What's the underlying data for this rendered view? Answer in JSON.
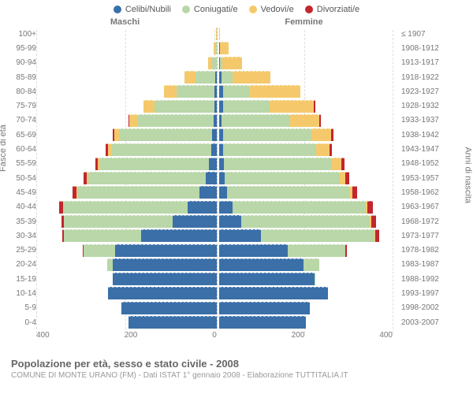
{
  "legend": {
    "items": [
      {
        "label": "Celibi/Nubili",
        "color": "#3a6fa8"
      },
      {
        "label": "Coniugati/e",
        "color": "#b9d7a8"
      },
      {
        "label": "Vedovi/e",
        "color": "#f5c96b"
      },
      {
        "label": "Divorziati/e",
        "color": "#c1272d"
      }
    ]
  },
  "headers": {
    "male": "Maschi",
    "female": "Femmine"
  },
  "axis_titles": {
    "left": "Fasce di età",
    "right": "Anni di nascita"
  },
  "x_ticks": [
    "400",
    "200",
    "0",
    "200",
    "400"
  ],
  "x_max": 400,
  "colors": {
    "celibi": "#3a6fa8",
    "coniugati": "#b9d7a8",
    "vedovi": "#f5c96b",
    "divorziati": "#c1272d"
  },
  "rows": [
    {
      "age": "100+",
      "birth": "≤ 1907",
      "m": {
        "c": 0,
        "co": 0,
        "v": 1,
        "d": 0
      },
      "f": {
        "c": 0,
        "co": 0,
        "v": 2,
        "d": 0
      }
    },
    {
      "age": "95-99",
      "birth": "1908-1912",
      "m": {
        "c": 0,
        "co": 2,
        "v": 5,
        "d": 0
      },
      "f": {
        "c": 2,
        "co": 0,
        "v": 20,
        "d": 0
      }
    },
    {
      "age": "90-94",
      "birth": "1913-1917",
      "m": {
        "c": 0,
        "co": 10,
        "v": 10,
        "d": 0
      },
      "f": {
        "c": 2,
        "co": 5,
        "v": 45,
        "d": 0
      }
    },
    {
      "age": "85-89",
      "birth": "1918-1922",
      "m": {
        "c": 3,
        "co": 45,
        "v": 25,
        "d": 0
      },
      "f": {
        "c": 5,
        "co": 25,
        "v": 85,
        "d": 0
      }
    },
    {
      "age": "80-84",
      "birth": "1923-1927",
      "m": {
        "c": 5,
        "co": 85,
        "v": 30,
        "d": 0
      },
      "f": {
        "c": 8,
        "co": 60,
        "v": 115,
        "d": 0
      }
    },
    {
      "age": "75-79",
      "birth": "1928-1932",
      "m": {
        "c": 5,
        "co": 135,
        "v": 25,
        "d": 0
      },
      "f": {
        "c": 8,
        "co": 105,
        "v": 100,
        "d": 3
      }
    },
    {
      "age": "70-74",
      "birth": "1933-1937",
      "m": {
        "c": 8,
        "co": 170,
        "v": 20,
        "d": 2
      },
      "f": {
        "c": 5,
        "co": 155,
        "v": 65,
        "d": 4
      }
    },
    {
      "age": "65-69",
      "birth": "1938-1942",
      "m": {
        "c": 10,
        "co": 210,
        "v": 12,
        "d": 3
      },
      "f": {
        "c": 8,
        "co": 200,
        "v": 45,
        "d": 5
      }
    },
    {
      "age": "60-64",
      "birth": "1943-1947",
      "m": {
        "c": 12,
        "co": 225,
        "v": 8,
        "d": 5
      },
      "f": {
        "c": 8,
        "co": 210,
        "v": 30,
        "d": 6
      }
    },
    {
      "age": "55-59",
      "birth": "1948-1952",
      "m": {
        "c": 18,
        "co": 245,
        "v": 5,
        "d": 6
      },
      "f": {
        "c": 10,
        "co": 245,
        "v": 20,
        "d": 8
      }
    },
    {
      "age": "50-54",
      "birth": "1953-1957",
      "m": {
        "c": 25,
        "co": 265,
        "v": 3,
        "d": 8
      },
      "f": {
        "c": 12,
        "co": 260,
        "v": 12,
        "d": 10
      }
    },
    {
      "age": "45-49",
      "birth": "1958-1962",
      "m": {
        "c": 40,
        "co": 275,
        "v": 2,
        "d": 8
      },
      "f": {
        "c": 18,
        "co": 275,
        "v": 8,
        "d": 10
      }
    },
    {
      "age": "40-44",
      "birth": "1963-1967",
      "m": {
        "c": 65,
        "co": 280,
        "v": 2,
        "d": 8
      },
      "f": {
        "c": 30,
        "co": 300,
        "v": 5,
        "d": 12
      }
    },
    {
      "age": "35-39",
      "birth": "1968-1972",
      "m": {
        "c": 100,
        "co": 245,
        "v": 0,
        "d": 6
      },
      "f": {
        "c": 50,
        "co": 290,
        "v": 3,
        "d": 10
      }
    },
    {
      "age": "30-34",
      "birth": "1973-1977",
      "m": {
        "c": 170,
        "co": 175,
        "v": 0,
        "d": 4
      },
      "f": {
        "c": 95,
        "co": 255,
        "v": 2,
        "d": 8
      }
    },
    {
      "age": "25-29",
      "birth": "1978-1982",
      "m": {
        "c": 230,
        "co": 70,
        "v": 0,
        "d": 2
      },
      "f": {
        "c": 155,
        "co": 130,
        "v": 0,
        "d": 3
      }
    },
    {
      "age": "20-24",
      "birth": "1983-1987",
      "m": {
        "c": 235,
        "co": 12,
        "v": 0,
        "d": 0
      },
      "f": {
        "c": 190,
        "co": 35,
        "v": 0,
        "d": 0
      }
    },
    {
      "age": "15-19",
      "birth": "1988-1992",
      "m": {
        "c": 235,
        "co": 0,
        "v": 0,
        "d": 0
      },
      "f": {
        "c": 215,
        "co": 2,
        "v": 0,
        "d": 0
      }
    },
    {
      "age": "10-14",
      "birth": "1993-1997",
      "m": {
        "c": 245,
        "co": 0,
        "v": 0,
        "d": 0
      },
      "f": {
        "c": 245,
        "co": 0,
        "v": 0,
        "d": 0
      }
    },
    {
      "age": "5-9",
      "birth": "1998-2002",
      "m": {
        "c": 215,
        "co": 0,
        "v": 0,
        "d": 0
      },
      "f": {
        "c": 205,
        "co": 0,
        "v": 0,
        "d": 0
      }
    },
    {
      "age": "0-4",
      "birth": "2003-2007",
      "m": {
        "c": 200,
        "co": 0,
        "v": 0,
        "d": 0
      },
      "f": {
        "c": 195,
        "co": 0,
        "v": 0,
        "d": 0
      }
    }
  ],
  "footer": {
    "title": "Popolazione per età, sesso e stato civile - 2008",
    "subtitle": "COMUNE DI MONTE URANO (FM) - Dati ISTAT 1° gennaio 2008 - Elaborazione TUTTITALIA.IT"
  }
}
